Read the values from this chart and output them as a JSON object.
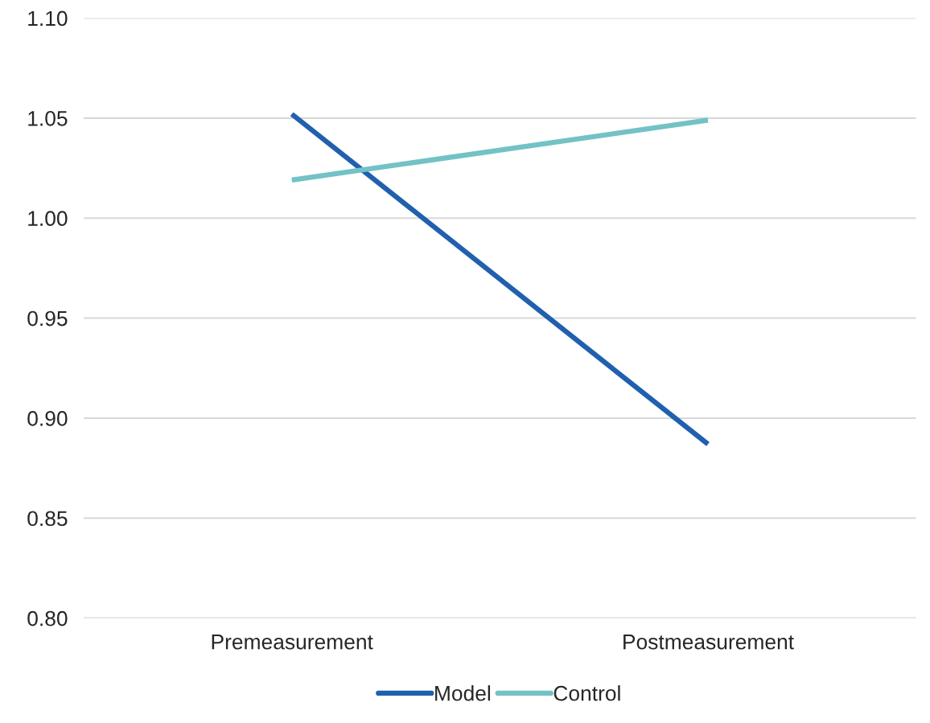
{
  "chart_data": {
    "type": "line",
    "categories": [
      "Premeasurement",
      "Postmeasurement"
    ],
    "series": [
      {
        "name": "Model",
        "color": "#2060ae",
        "values": [
          1.052,
          0.887
        ]
      },
      {
        "name": "Control",
        "color": "#72c2c6",
        "values": [
          1.019,
          1.049
        ]
      }
    ],
    "ylim": [
      0.8,
      1.1
    ],
    "yticks": [
      {
        "value": 0.8,
        "label": "0.80"
      },
      {
        "value": 0.85,
        "label": "0.85"
      },
      {
        "value": 0.9,
        "label": "0.90"
      },
      {
        "value": 0.95,
        "label": "0.95"
      },
      {
        "value": 1.0,
        "label": "1.00"
      },
      {
        "value": 1.05,
        "label": "1.05"
      },
      {
        "value": 1.1,
        "label": "1.10"
      }
    ],
    "grid": "y",
    "legend": "bottom",
    "marker": "none",
    "line_style": "solid"
  }
}
